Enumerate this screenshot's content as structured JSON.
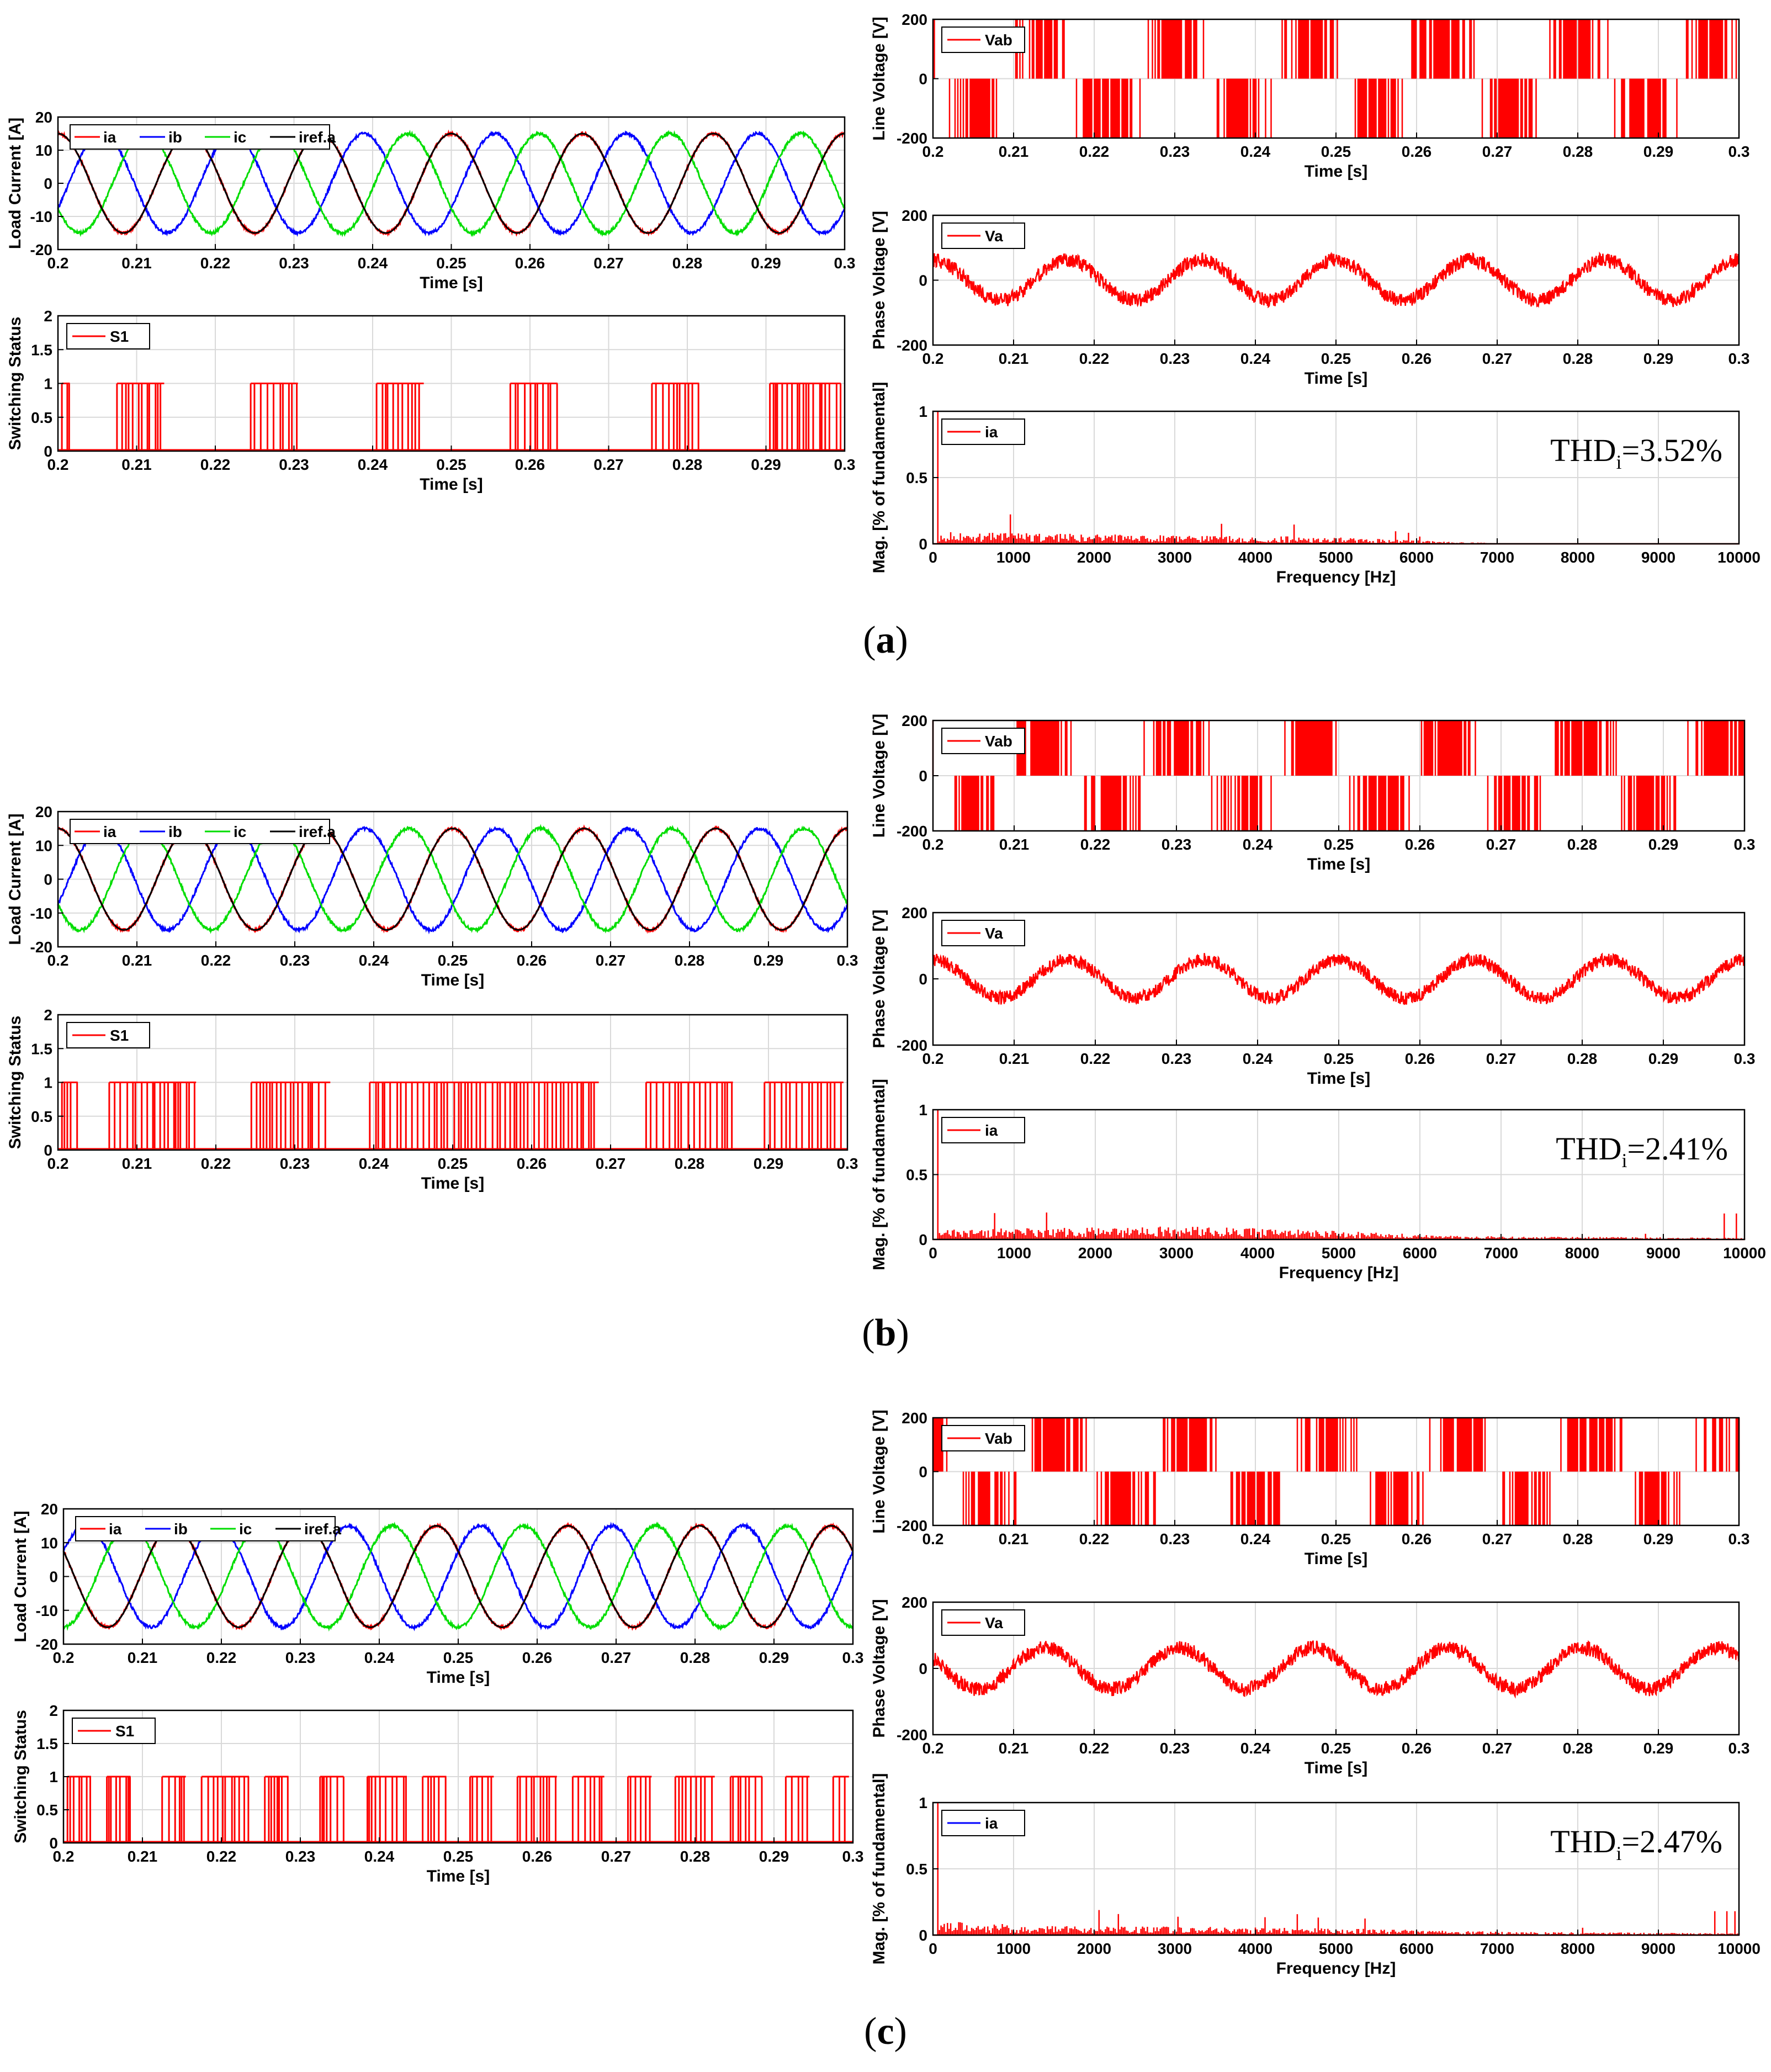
{
  "colors": {
    "ia": "#ff0000",
    "ib": "#0000ff",
    "ic": "#00dd00",
    "iref": "#000000",
    "signal": "#ff0000",
    "axis": "#000000",
    "grid": "#d9d9d9"
  },
  "captions": {
    "a": "a",
    "b": "b",
    "c": "c"
  },
  "chart_data": [
    {
      "id": "a-current",
      "panel": "a",
      "type": "line",
      "ylabel": "Load Current [A]",
      "xlabel": "Time [s]",
      "xlim": [
        0.2,
        0.3
      ],
      "ylim": [
        -20,
        20
      ],
      "xticks": [
        "0.2",
        "0.21",
        "0.22",
        "0.23",
        "0.24",
        "0.25",
        "0.26",
        "0.27",
        "0.28",
        "0.29",
        "0.3"
      ],
      "yticks": [
        "-20",
        "-10",
        "0",
        "10",
        "20"
      ],
      "legend": [
        "ia",
        "ib",
        "ic",
        "iref.a"
      ],
      "series": [
        {
          "name": "ia",
          "amplitude": 15,
          "frequency_hz": 60,
          "phase_deg": 90
        },
        {
          "name": "ib",
          "amplitude": 15,
          "frequency_hz": 60,
          "phase_deg": -30
        },
        {
          "name": "ic",
          "amplitude": 15,
          "frequency_hz": 60,
          "phase_deg": 210
        },
        {
          "name": "iref.a",
          "amplitude": 15,
          "frequency_hz": 60,
          "phase_deg": 90
        }
      ]
    },
    {
      "id": "a-switch",
      "panel": "a",
      "type": "line",
      "ylabel": "Switching Status",
      "xlabel": "Time [s]",
      "xlim": [
        0.2,
        0.3
      ],
      "ylim": [
        0,
        2
      ],
      "xticks": [
        "0.2",
        "0.21",
        "0.22",
        "0.23",
        "0.24",
        "0.25",
        "0.26",
        "0.27",
        "0.28",
        "0.29",
        "0.3"
      ],
      "yticks": [
        "0",
        "0.5",
        "1",
        "1.5",
        "2"
      ],
      "legend": [
        "S1"
      ],
      "series": [
        {
          "name": "S1",
          "level": 1,
          "switching_bursts_s": [
            [
              0.2005,
              0.2015
            ],
            [
              0.2075,
              0.2135
            ],
            [
              0.2245,
              0.2305
            ],
            [
              0.2405,
              0.2465
            ],
            [
              0.2575,
              0.2635
            ],
            [
              0.2755,
              0.2815
            ],
            [
              0.2905,
              0.2995
            ]
          ]
        }
      ]
    },
    {
      "id": "a-line",
      "panel": "a",
      "type": "line",
      "ylabel": "Line Voltage [V]",
      "xlabel": "Time [s]",
      "xlim": [
        0.2,
        0.3
      ],
      "ylim": [
        -200,
        200
      ],
      "xticks": [
        "0.2",
        "0.21",
        "0.22",
        "0.23",
        "0.24",
        "0.25",
        "0.26",
        "0.27",
        "0.28",
        "0.29",
        "0.3"
      ],
      "yticks": [
        "-200",
        "0",
        "200"
      ],
      "legend": [
        "Vab"
      ],
      "series": [
        {
          "name": "Vab",
          "dc_link_v": 200,
          "frequency_hz": 60,
          "phase_deg": 160
        }
      ]
    },
    {
      "id": "a-phase",
      "panel": "a",
      "type": "line",
      "ylabel": "Phase Voltage [V]",
      "xlabel": "Time [s]",
      "xlim": [
        0.2,
        0.3
      ],
      "ylim": [
        -200,
        200
      ],
      "xticks": [
        "0.2",
        "0.21",
        "0.22",
        "0.23",
        "0.24",
        "0.25",
        "0.26",
        "0.27",
        "0.28",
        "0.29",
        "0.3"
      ],
      "yticks": [
        "-200",
        "0",
        "200"
      ],
      "legend": [
        "Va"
      ],
      "series": [
        {
          "name": "Va",
          "amplitude": 62,
          "ripple": 22,
          "frequency_hz": 60,
          "phase_deg": 90
        }
      ]
    },
    {
      "id": "a-fft",
      "panel": "a",
      "type": "bar",
      "ylabel": "Mag. [% of fundamental]",
      "xlabel": "Frequency [Hz]",
      "xlim": [
        0,
        10000
      ],
      "ylim": [
        0,
        1
      ],
      "xticks": [
        "0",
        "1000",
        "2000",
        "3000",
        "4000",
        "5000",
        "6000",
        "7000",
        "8000",
        "9000",
        "10000"
      ],
      "yticks": [
        "0",
        "0.5",
        "1"
      ],
      "legend": [
        "ia"
      ],
      "legend_color": "#ff0000",
      "thd_prefix": "THD",
      "thd_sub": "i",
      "thd_value": "=3.52%",
      "series": [
        {
          "name": "ia",
          "fundamental_hz": 60,
          "harmonic_floor": [
            [
              0,
              0.07
            ],
            [
              3000,
              0.05
            ],
            [
              5000,
              0.04
            ],
            [
              6500,
              0.01
            ],
            [
              7500,
              0.0
            ]
          ],
          "end_spikes": []
        }
      ]
    },
    {
      "id": "b-current",
      "panel": "b",
      "type": "line",
      "ylabel": "Load Current [A]",
      "xlabel": "Time [s]",
      "xlim": [
        0.2,
        0.3
      ],
      "ylim": [
        -20,
        20
      ],
      "xticks": [
        "0.2",
        "0.21",
        "0.22",
        "0.23",
        "0.24",
        "0.25",
        "0.26",
        "0.27",
        "0.28",
        "0.29",
        "0.3"
      ],
      "yticks": [
        "-20",
        "-10",
        "0",
        "10",
        "20"
      ],
      "legend": [
        "ia",
        "ib",
        "ic",
        "iref.a"
      ],
      "series": [
        {
          "name": "ia",
          "amplitude": 15,
          "frequency_hz": 60,
          "phase_deg": 90
        },
        {
          "name": "ib",
          "amplitude": 15,
          "frequency_hz": 60,
          "phase_deg": -30
        },
        {
          "name": "ic",
          "amplitude": 15,
          "frequency_hz": 60,
          "phase_deg": 210
        },
        {
          "name": "iref.a",
          "amplitude": 15,
          "frequency_hz": 60,
          "phase_deg": 90
        }
      ]
    },
    {
      "id": "b-switch",
      "panel": "b",
      "type": "line",
      "ylabel": "Switching Status",
      "xlabel": "Time [s]",
      "xlim": [
        0.2,
        0.3
      ],
      "ylim": [
        0,
        2
      ],
      "xticks": [
        "0.2",
        "0.21",
        "0.22",
        "0.23",
        "0.24",
        "0.25",
        "0.26",
        "0.27",
        "0.28",
        "0.29",
        "0.3"
      ],
      "yticks": [
        "0",
        "0.5",
        "1",
        "1.5",
        "2"
      ],
      "legend": [
        "S1"
      ],
      "series": [
        {
          "name": "S1",
          "level": 1,
          "switching_bursts_s": [
            [
              0.2005,
              0.2025
            ],
            [
              0.2065,
              0.2175
            ],
            [
              0.2245,
              0.2345
            ],
            [
              0.2395,
              0.2685
            ],
            [
              0.2745,
              0.2855
            ],
            [
              0.2895,
              0.2995
            ]
          ]
        }
      ]
    },
    {
      "id": "b-line",
      "panel": "b",
      "type": "line",
      "ylabel": "Line Voltage [V]",
      "xlabel": "Time [s]",
      "xlim": [
        0.2,
        0.3
      ],
      "ylim": [
        -200,
        200
      ],
      "xticks": [
        "0.2",
        "0.21",
        "0.22",
        "0.23",
        "0.24",
        "0.25",
        "0.26",
        "0.27",
        "0.28",
        "0.29",
        "0.3"
      ],
      "yticks": [
        "-200",
        "0",
        "200"
      ],
      "legend": [
        "Vab"
      ],
      "series": [
        {
          "name": "Vab",
          "dc_link_v": 200,
          "frequency_hz": 60,
          "phase_deg": 160
        }
      ]
    },
    {
      "id": "b-phase",
      "panel": "b",
      "type": "line",
      "ylabel": "Phase Voltage [V]",
      "xlabel": "Time [s]",
      "xlim": [
        0.2,
        0.3
      ],
      "ylim": [
        -200,
        200
      ],
      "xticks": [
        "0.2",
        "0.21",
        "0.22",
        "0.23",
        "0.24",
        "0.25",
        "0.26",
        "0.27",
        "0.28",
        "0.29",
        "0.3"
      ],
      "yticks": [
        "-200",
        "0",
        "200"
      ],
      "legend": [
        "Va"
      ],
      "series": [
        {
          "name": "Va",
          "amplitude": 58,
          "ripple": 20,
          "frequency_hz": 60,
          "phase_deg": 90
        }
      ]
    },
    {
      "id": "b-fft",
      "panel": "b",
      "type": "bar",
      "ylabel": "Mag. [% of fundamental]",
      "xlabel": "Frequency [Hz]",
      "xlim": [
        0,
        10000
      ],
      "ylim": [
        0,
        1
      ],
      "xticks": [
        "0",
        "1000",
        "2000",
        "3000",
        "4000",
        "5000",
        "6000",
        "7000",
        "8000",
        "9000",
        "10000"
      ],
      "yticks": [
        "0",
        "0.5",
        "1"
      ],
      "legend": [
        "ia"
      ],
      "legend_color": "#ff0000",
      "thd_prefix": "THD",
      "thd_sub": "i",
      "thd_value": "=2.41%",
      "series": [
        {
          "name": "ia",
          "fundamental_hz": 60,
          "harmonic_floor": [
            [
              0,
              0.06
            ],
            [
              3000,
              0.08
            ],
            [
              4500,
              0.06
            ],
            [
              6500,
              0.02
            ],
            [
              10000,
              0.01
            ]
          ],
          "end_spikes": [
            [
              9750,
              0.2
            ],
            [
              9900,
              0.2
            ]
          ]
        }
      ]
    },
    {
      "id": "c-current",
      "panel": "c",
      "type": "line",
      "ylabel": "Load Current [A]",
      "xlabel": "Time [s]",
      "xlim": [
        0.2,
        0.3
      ],
      "ylim": [
        -20,
        20
      ],
      "xticks": [
        "0.2",
        "0.21",
        "0.22",
        "0.23",
        "0.24",
        "0.25",
        "0.26",
        "0.27",
        "0.28",
        "0.29",
        "0.3"
      ],
      "yticks": [
        "-20",
        "-10",
        "0",
        "10",
        "20"
      ],
      "legend": [
        "ia",
        "ib",
        "ic",
        "iref.a"
      ],
      "series": [
        {
          "name": "ia",
          "amplitude": 15,
          "frequency_hz": 60,
          "phase_deg": 150
        },
        {
          "name": "ib",
          "amplitude": 15,
          "frequency_hz": 60,
          "phase_deg": 30
        },
        {
          "name": "ic",
          "amplitude": 15,
          "frequency_hz": 60,
          "phase_deg": 270
        },
        {
          "name": "iref.a",
          "amplitude": 15,
          "frequency_hz": 60,
          "phase_deg": 150
        }
      ]
    },
    {
      "id": "c-switch",
      "panel": "c",
      "type": "line",
      "ylabel": "Switching Status",
      "xlabel": "Time [s]",
      "xlim": [
        0.2,
        0.3
      ],
      "ylim": [
        0,
        2
      ],
      "xticks": [
        "0.2",
        "0.21",
        "0.22",
        "0.23",
        "0.24",
        "0.25",
        "0.26",
        "0.27",
        "0.28",
        "0.29",
        "0.3"
      ],
      "yticks": [
        "0",
        "0.5",
        "1",
        "1.5",
        "2"
      ],
      "legend": [
        "S1"
      ],
      "series": [
        {
          "name": "S1",
          "level": 1,
          "switching_bursts_s": [
            [
              0.2005,
              0.2035
            ],
            [
              0.2055,
              0.2085
            ],
            [
              0.2125,
              0.2155
            ],
            [
              0.2175,
              0.2235
            ],
            [
              0.2255,
              0.2285
            ],
            [
              0.2325,
              0.2355
            ],
            [
              0.2385,
              0.2435
            ],
            [
              0.2455,
              0.2485
            ],
            [
              0.2515,
              0.2545
            ],
            [
              0.2575,
              0.2625
            ],
            [
              0.2645,
              0.2685
            ],
            [
              0.2715,
              0.2745
            ],
            [
              0.2775,
              0.2825
            ],
            [
              0.2845,
              0.2885
            ],
            [
              0.2915,
              0.2945
            ],
            [
              0.2975,
              0.2995
            ]
          ]
        }
      ]
    },
    {
      "id": "c-line",
      "panel": "c",
      "type": "line",
      "ylabel": "Line Voltage [V]",
      "xlabel": "Time [s]",
      "xlim": [
        0.2,
        0.3
      ],
      "ylim": [
        -200,
        200
      ],
      "xticks": [
        "0.2",
        "0.21",
        "0.22",
        "0.23",
        "0.24",
        "0.25",
        "0.26",
        "0.27",
        "0.28",
        "0.29",
        "0.3"
      ],
      "yticks": [
        "-200",
        "0",
        "200"
      ],
      "legend": [
        "Vab"
      ],
      "series": [
        {
          "name": "Vab",
          "dc_link_v": 200,
          "frequency_hz": 60,
          "phase_deg": 120
        }
      ]
    },
    {
      "id": "c-phase",
      "panel": "c",
      "type": "line",
      "ylabel": "Phase Voltage [V]",
      "xlabel": "Time [s]",
      "xlim": [
        0.2,
        0.3
      ],
      "ylim": [
        -200,
        200
      ],
      "xticks": [
        "0.2",
        "0.21",
        "0.22",
        "0.23",
        "0.24",
        "0.25",
        "0.26",
        "0.27",
        "0.28",
        "0.29",
        "0.3"
      ],
      "yticks": [
        "-200",
        "0",
        "200"
      ],
      "legend": [
        "Va"
      ],
      "series": [
        {
          "name": "Va",
          "amplitude": 62,
          "ripple": 22,
          "frequency_hz": 60,
          "phase_deg": 150
        }
      ]
    },
    {
      "id": "c-fft",
      "panel": "c",
      "type": "bar",
      "ylabel": "Mag. [% of fundamental]",
      "xlabel": "Frequency [Hz]",
      "xlim": [
        0,
        10000
      ],
      "ylim": [
        0,
        1
      ],
      "xticks": [
        "0",
        "1000",
        "2000",
        "3000",
        "4000",
        "5000",
        "6000",
        "7000",
        "8000",
        "9000",
        "10000"
      ],
      "yticks": [
        "0",
        "0.5",
        "1"
      ],
      "legend": [
        "ia"
      ],
      "legend_color": "#0000ff",
      "thd_prefix": "THD",
      "thd_sub": "i",
      "thd_value": "=2.47%",
      "series": [
        {
          "name": "ia",
          "fundamental_hz": 60,
          "harmonic_floor": [
            [
              0,
              0.09
            ],
            [
              1000,
              0.06
            ],
            [
              5000,
              0.04
            ],
            [
              7000,
              0.02
            ],
            [
              10000,
              0.01
            ]
          ],
          "end_spikes": [
            [
              9700,
              0.18
            ],
            [
              9850,
              0.18
            ],
            [
              9950,
              0.18
            ]
          ]
        }
      ]
    }
  ]
}
